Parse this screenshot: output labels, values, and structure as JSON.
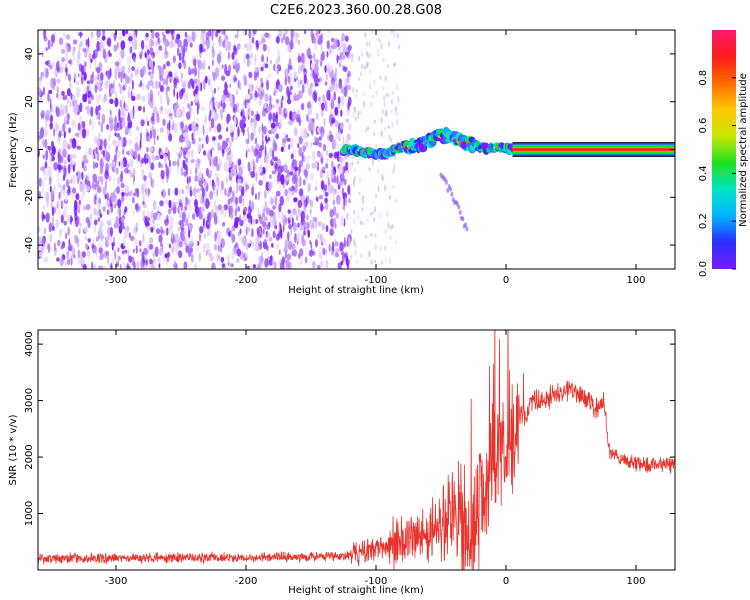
{
  "title": "C2E6.2023.360.00.28.G08",
  "colors": {
    "series": "#e8322c",
    "axis": "#000000",
    "spectrogram_noise": "#7a2cf0"
  },
  "chart_data": [
    {
      "type": "heatmap",
      "xlabel": "Height of straight line (km)",
      "ylabel": "Frequency (Hz)",
      "xlim": [
        -360,
        130
      ],
      "ylim": [
        -50,
        50
      ],
      "x_ticks": [
        -300,
        -200,
        -100,
        0,
        100
      ],
      "y_ticks": [
        -40,
        -20,
        0,
        20,
        40
      ],
      "colorbar": {
        "label": "Normalized spectral amplitude",
        "range": [
          0,
          1
        ],
        "ticks": [
          0.0,
          0.2,
          0.4,
          0.6,
          0.8
        ],
        "tick_labels": [
          "0.0",
          "0.2",
          "0.4",
          "0.6",
          "0.8"
        ],
        "colormap": [
          "#7a1cff",
          "#2a2cff",
          "#00b2ff",
          "#00e6c8",
          "#1fe01f",
          "#c8e600",
          "#ffc800",
          "#ff6a00",
          "#ff1a1a",
          "#ff1a70"
        ]
      },
      "noise_region_x": [
        -360,
        -120
      ],
      "fade_region_x": [
        -120,
        -90
      ],
      "carrier_band": {
        "x": [
          -125,
          -110,
          -95,
          -80,
          -65,
          -55,
          -45,
          -35,
          -25,
          -15,
          -5,
          5,
          130
        ],
        "freq": [
          0,
          -1,
          -2,
          1,
          2,
          5,
          6,
          3,
          2,
          0,
          1,
          0,
          0
        ]
      },
      "faint_tail": {
        "x": [
          -50,
          -30
        ],
        "freq": [
          -10,
          -33
        ]
      }
    },
    {
      "type": "line",
      "xlabel": "Height of straight line (km)",
      "ylabel": "SNR (10 * v/v)",
      "xlim": [
        -360,
        130
      ],
      "ylim": [
        0,
        4250
      ],
      "x_ticks": [
        -300,
        -200,
        -100,
        0,
        100
      ],
      "y_ticks": [
        1000,
        2000,
        3000,
        4000
      ],
      "series": [
        {
          "color": "#e8322c",
          "x": [
            -360,
            -300,
            -200,
            -130,
            -110,
            -100,
            -90,
            -80,
            -70,
            -60,
            -50,
            -40,
            -30,
            -25,
            -20,
            -15,
            -10,
            -5,
            0,
            5,
            10,
            15,
            20,
            30,
            40,
            50,
            60,
            70,
            75,
            80,
            90,
            100,
            110,
            120,
            130
          ],
          "y": [
            200,
            210,
            220,
            240,
            300,
            380,
            450,
            520,
            600,
            650,
            800,
            1000,
            700,
            500,
            1100,
            1500,
            1800,
            2200,
            1900,
            2300,
            2700,
            2800,
            3000,
            3000,
            3150,
            3200,
            3050,
            2850,
            3000,
            2050,
            1950,
            1900,
            1850,
            1900,
            1850
          ]
        }
      ]
    }
  ]
}
